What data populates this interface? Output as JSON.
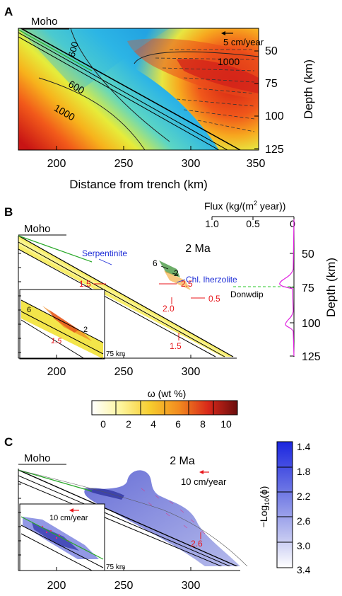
{
  "panels": {
    "A": {
      "letter": "A",
      "moho": "Moho",
      "velocity_label": "5 cm/year",
      "contours": [
        "600",
        "600",
        "1000",
        "1000"
      ],
      "x_ticks": [
        "200",
        "250",
        "300",
        "350"
      ],
      "x_label": "Distance from trench (km)",
      "y_ticks": [
        "50",
        "75",
        "100",
        "125"
      ],
      "y_label": "Depth (km)"
    },
    "B": {
      "letter": "B",
      "moho": "Moho",
      "time": "2 Ma",
      "serpentinite": "Serpentinite",
      "chl": "Chl. lherzolite",
      "labels": {
        "six": "6",
        "two": "2",
        "l15a": "1.5",
        "l25": "2.5",
        "l20": "2.0",
        "l05": "0.5",
        "l15b": "1.5"
      },
      "inset": {
        "six": "6",
        "two": "2",
        "l15": "1.5",
        "depth": "75 km"
      },
      "x_ticks": [
        "200",
        "250",
        "300"
      ],
      "flux": {
        "title_pre": "Flux (kg/(m",
        "title_sup": "2",
        "title_post": " year))",
        "x_ticks": [
          "1.0",
          "0.5",
          "0"
        ],
        "y_ticks": [
          "50",
          "75",
          "100",
          "125"
        ],
        "y_label": "Depth (km)",
        "downdip": "Donwdip"
      },
      "colorbar": {
        "label": "ω (wt %)",
        "ticks": [
          "0",
          "2",
          "4",
          "6",
          "8",
          "10"
        ]
      }
    },
    "C": {
      "letter": "C",
      "moho": "Moho",
      "time": "2 Ma",
      "velocity_label": "10 cm/year",
      "label_26": "2.6",
      "inset": {
        "velocity": "10 cm/year",
        "depth": "75 km"
      },
      "x_ticks": [
        "200",
        "250",
        "300"
      ],
      "colorbar": {
        "label_pre": "−Log",
        "label_sub": "10",
        "label_post": "(ϕ)",
        "ticks": [
          "1.4",
          "1.8",
          "2.2",
          "2.6",
          "3.0",
          "3.4"
        ]
      }
    }
  },
  "colors": {
    "accent_red": "#e8161b",
    "accent_blue": "#1c2bd6",
    "flux_line": "#e020e0",
    "moho_green": "#28a828"
  }
}
